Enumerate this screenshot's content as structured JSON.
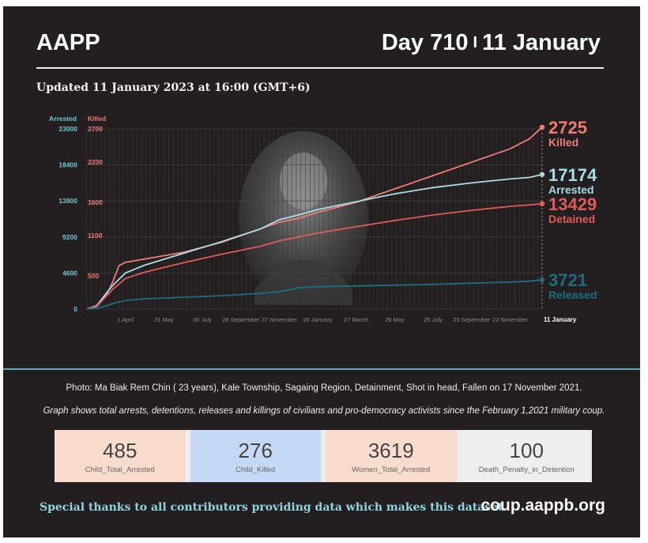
{
  "header": {
    "brand": "AAPP",
    "day": "Day 710",
    "separator": "I",
    "date": "11 January",
    "updated": "Updated 11 January 2023 at 16:00 (GMT+6)"
  },
  "chart_data": {
    "type": "line",
    "y_axis_labels": {
      "left": "Arrested",
      "right": "Killed"
    },
    "y_ticks_arrested": [
      0,
      4600,
      9200,
      13800,
      18400,
      23000
    ],
    "y_ticks_killed": [
      "500",
      "1100",
      "1600",
      "2200",
      "2700"
    ],
    "y_ticks_killed_values": [
      500,
      1100,
      1600,
      2200,
      2700
    ],
    "ylim_arrested": [
      0,
      23000
    ],
    "ylim_killed": [
      0,
      2700
    ],
    "x_ticks": [
      "1 April",
      "31 May",
      "30 July",
      "28 September",
      "27 November",
      "26 January",
      "27 March",
      "26 May",
      "25 July",
      "23 September",
      "22 November",
      "11 January"
    ],
    "x_tick_days": [
      60,
      120,
      180,
      240,
      300,
      360,
      420,
      480,
      540,
      600,
      660,
      710
    ],
    "xlim_days": [
      0,
      710
    ],
    "grid": true,
    "series": [
      {
        "name": "Killed",
        "axis": "killed",
        "color": "#f07b73",
        "final": "2725",
        "x": [
          0,
          15,
          30,
          40,
          50,
          60,
          90,
          150,
          210,
          270,
          300,
          330,
          360,
          420,
          480,
          540,
          600,
          660,
          690,
          710
        ],
        "y": [
          0,
          50,
          200,
          400,
          650,
          700,
          750,
          850,
          1000,
          1200,
          1300,
          1360,
          1450,
          1600,
          1800,
          2000,
          2200,
          2400,
          2550,
          2725
        ]
      },
      {
        "name": "Arrested",
        "axis": "arrested",
        "color": "#a9dde6",
        "final": "17174",
        "x": [
          0,
          15,
          30,
          40,
          50,
          60,
          90,
          150,
          210,
          270,
          300,
          330,
          360,
          420,
          480,
          540,
          600,
          660,
          690,
          710
        ],
        "y": [
          0,
          400,
          2000,
          3000,
          3800,
          4600,
          5600,
          7100,
          8600,
          10200,
          11400,
          12000,
          12700,
          13700,
          14700,
          15500,
          16100,
          16600,
          16800,
          17174
        ]
      },
      {
        "name": "Detained",
        "axis": "arrested",
        "color": "#e05a57",
        "final": "13429",
        "x": [
          0,
          15,
          30,
          40,
          50,
          60,
          90,
          150,
          210,
          270,
          300,
          330,
          360,
          420,
          480,
          540,
          600,
          660,
          690,
          710
        ],
        "y": [
          0,
          300,
          1600,
          2500,
          3200,
          3900,
          4700,
          5900,
          7000,
          8000,
          8700,
          9200,
          9700,
          10500,
          11300,
          12000,
          12600,
          13100,
          13300,
          13429
        ]
      },
      {
        "name": "Released",
        "axis": "arrested",
        "color": "#1b6e80",
        "final": "3721",
        "x": [
          0,
          15,
          30,
          40,
          50,
          60,
          90,
          150,
          210,
          270,
          300,
          330,
          360,
          420,
          480,
          540,
          600,
          660,
          690,
          710
        ],
        "y": [
          0,
          100,
          400,
          700,
          900,
          1100,
          1300,
          1500,
          1700,
          2000,
          2200,
          2700,
          2850,
          2950,
          3050,
          3150,
          3300,
          3450,
          3550,
          3721
        ]
      }
    ]
  },
  "caption": "Photo: Ma Biak Rem Chin ( 23 years), Kale Township, Sagaing Region, Detainment, Shot in head, Fallen on 17 November 2021.",
  "note": "Graph shows total arrests, detentions, releases and killings of civilians and pro-democracy activists since the February 1,2021 military coup.",
  "cards": [
    {
      "value": "485",
      "label": "Child_Total_Arrested",
      "bg": "#f9dccd"
    },
    {
      "value": "276",
      "label": "Child_Killed",
      "bg": "#c5d9f6"
    },
    {
      "value": "3619",
      "label": "Women_Total_Arrested",
      "bg": "#f9dccd"
    },
    {
      "value": "100",
      "label": "Death_Penalty_in_Detention",
      "bg": "#eeeeee"
    }
  ],
  "footer": {
    "thanks": "Special thanks to all contributors providing data which makes this dataset.",
    "site": "coup.aappb.org"
  }
}
